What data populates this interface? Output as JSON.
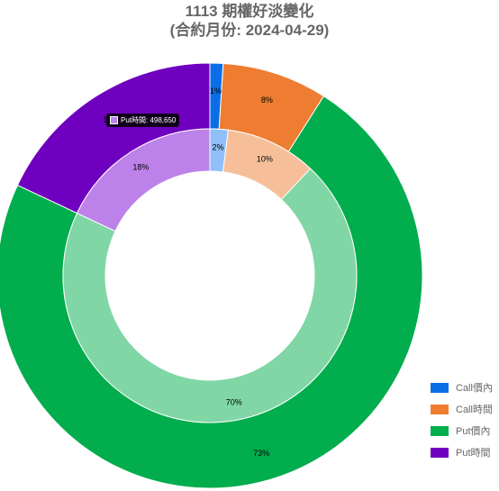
{
  "chart_data": {
    "type": "doughnut",
    "title_line1": "1113 期權好淡變化",
    "title_line2": "(合約月份: 2024-04-29)",
    "categories": [
      "Call價內",
      "Call時間",
      "Put價內",
      "Put時間"
    ],
    "series": [
      {
        "ring": "outer",
        "values": [
          1,
          8,
          73,
          18
        ],
        "labels": [
          "1%",
          "8%",
          "73%",
          "18%"
        ]
      },
      {
        "ring": "inner",
        "values": [
          2,
          10,
          70,
          18
        ],
        "labels": [
          "2%",
          "10%",
          "70%",
          "18%"
        ]
      }
    ],
    "colors": {
      "outer": [
        "#0b6ee6",
        "#ee7d31",
        "#01ad4c",
        "#7000bf"
      ],
      "inner": [
        "#8fc0f9",
        "#f6bf9a",
        "#80d6a5",
        "#bd81ea"
      ]
    },
    "legend": {
      "position": "bottom-right"
    },
    "tooltip": {
      "text": "Put時間: 498,650"
    }
  }
}
